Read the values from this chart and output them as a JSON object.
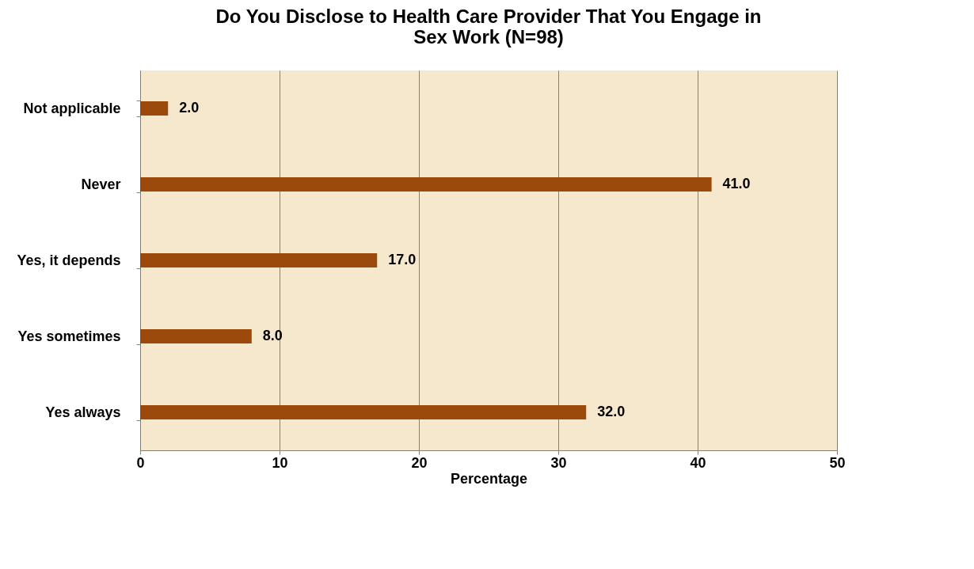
{
  "chart_data": {
    "type": "bar",
    "orientation": "horizontal",
    "title": "Do You Disclose to Health Care Provider That You Engage in Sex Work (N=98)",
    "xlabel": "Percentage",
    "categories": [
      "Not applicable",
      "Never",
      "Yes, it depends",
      "Yes sometimes",
      "Yes always"
    ],
    "values": [
      2.0,
      41.0,
      17.0,
      8.0,
      32.0
    ],
    "color": "#9c4a0b",
    "value_labels": [
      "2.0",
      "41.0",
      "17.0",
      "8.0",
      "32.0"
    ],
    "xlim": [
      0,
      50
    ],
    "xticks": [
      0,
      10,
      20,
      30,
      40,
      50
    ],
    "grid": "x"
  }
}
